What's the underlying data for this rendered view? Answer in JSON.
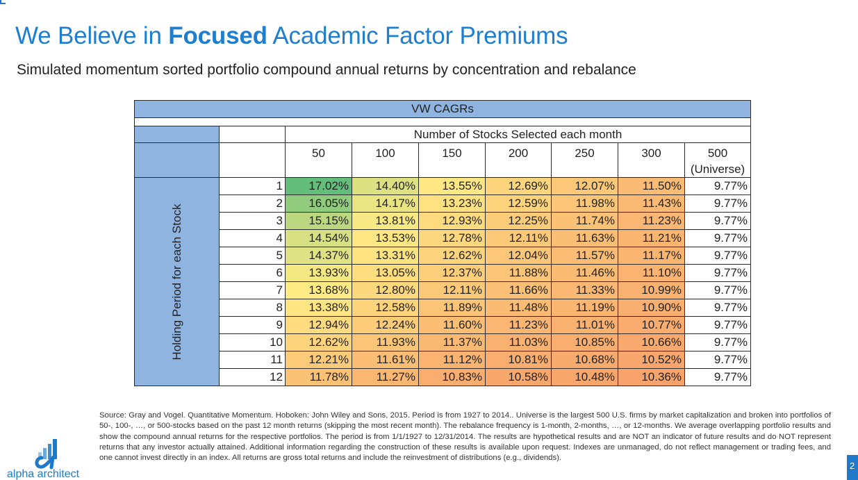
{
  "slide": {
    "title_pre": "We Believe in ",
    "title_bold": "Focused",
    "title_post": " Academic Factor Premiums",
    "subtitle": "Simulated momentum sorted portfolio compound annual returns by concentration and rebalance"
  },
  "table": {
    "title": "VW CAGRs",
    "col_group_label": "Number of Stocks Selected each month",
    "row_group_label": "Holding Period for each Stock",
    "columns": [
      "50",
      "100",
      "150",
      "200",
      "250",
      "300",
      "500"
    ],
    "universe_label": "(Universe)",
    "rows": [
      {
        "period": "1",
        "values": [
          "17.02%",
          "14.40%",
          "13.55%",
          "12.69%",
          "12.07%",
          "11.50%",
          "9.77%"
        ]
      },
      {
        "period": "2",
        "values": [
          "16.05%",
          "14.17%",
          "13.23%",
          "12.59%",
          "11.98%",
          "11.43%",
          "9.77%"
        ]
      },
      {
        "period": "3",
        "values": [
          "15.15%",
          "13.81%",
          "12.93%",
          "12.25%",
          "11.74%",
          "11.23%",
          "9.77%"
        ]
      },
      {
        "period": "4",
        "values": [
          "14.54%",
          "13.53%",
          "12.78%",
          "12.11%",
          "11.63%",
          "11.21%",
          "9.77%"
        ]
      },
      {
        "period": "5",
        "values": [
          "14.37%",
          "13.31%",
          "12.62%",
          "12.04%",
          "11.57%",
          "11.17%",
          "9.77%"
        ]
      },
      {
        "period": "6",
        "values": [
          "13.93%",
          "13.05%",
          "12.37%",
          "11.88%",
          "11.46%",
          "11.10%",
          "9.77%"
        ]
      },
      {
        "period": "7",
        "values": [
          "13.68%",
          "12.80%",
          "12.11%",
          "11.66%",
          "11.33%",
          "10.99%",
          "9.77%"
        ]
      },
      {
        "period": "8",
        "values": [
          "13.38%",
          "12.58%",
          "11.89%",
          "11.48%",
          "11.19%",
          "10.90%",
          "9.77%"
        ]
      },
      {
        "period": "9",
        "values": [
          "12.94%",
          "12.24%",
          "11.60%",
          "11.23%",
          "11.01%",
          "10.77%",
          "9.77%"
        ]
      },
      {
        "period": "10",
        "values": [
          "12.62%",
          "11.93%",
          "11.37%",
          "11.03%",
          "10.85%",
          "10.66%",
          "9.77%"
        ]
      },
      {
        "period": "11",
        "values": [
          "12.21%",
          "11.61%",
          "11.12%",
          "10.81%",
          "10.68%",
          "10.52%",
          "9.77%"
        ]
      },
      {
        "period": "12",
        "values": [
          "11.78%",
          "11.27%",
          "10.83%",
          "10.58%",
          "10.48%",
          "10.36%",
          "9.77%"
        ]
      }
    ]
  },
  "colors": {
    "title_blue": "#1e7fd0",
    "header_blue": "#8fb4e0",
    "heat_high": "#63be7b",
    "heat_mid": "#ffeb84",
    "heat_low": "#f8a36b"
  },
  "footnote": "Source: Gray and Vogel. Quantitative Momentum. Hoboken: John Wiley and Sons, 2015. Period is from 1927 to 2014.. Universe is the largest 500 U.S. firms by market capitalization and broken into portfolios of 50-, 100-, …, or 500-stocks based on the past 12 month returns (skipping the most recent month). The rebalance frequency is 1-month, 2-months, …, or 12-months. We average overlapping portfolio results and show the compound annual returns for the respective portfolios. The period is from 1/1/1927 to 12/31/2014. The results are hypothetical results and are NOT an indicator of future results and do NOT represent returns that any investor actually attained. Additional information regarding the construction of these results is available upon request. Indexes are unmanaged, do not reflect management or trading fees, and one cannot invest directly in an index. All returns are gross total returns and include the reinvestment of distributions (e.g., dividends).",
  "logo": {
    "icon": "alpha-architect-logo-icon",
    "text": "alpha architect"
  },
  "page_number": "2"
}
